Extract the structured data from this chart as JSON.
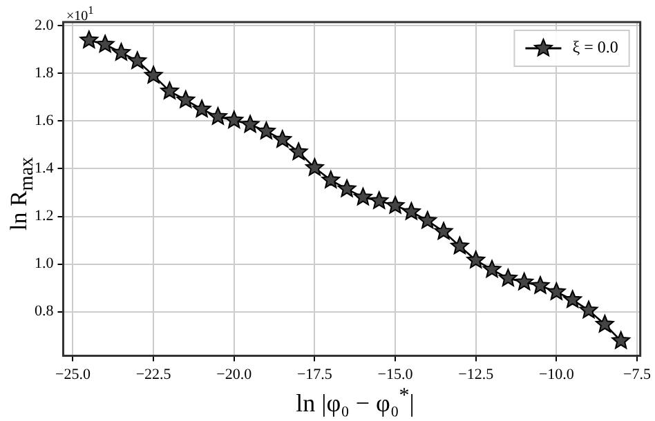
{
  "chart_data": {
    "type": "line",
    "xlabel": "ln |φ₀ − φ₀$^{*}$|",
    "ylabel": "ln R$_{max}$",
    "annotations": [
      "×10$^{1}$"
    ],
    "x": [
      -24.5,
      -24,
      -23.5,
      -23,
      -22.5,
      -22,
      -21.5,
      -21,
      -20.5,
      -20,
      -19.5,
      -19,
      -18.5,
      -18,
      -17.5,
      -17,
      -16.5,
      -16,
      -15.5,
      -15,
      -14.5,
      -14,
      -13.5,
      -13,
      -12.5,
      -12,
      -11.5,
      -11,
      -10.5,
      -10,
      -9.5,
      -9,
      -8.5,
      -8
    ],
    "series": [
      {
        "name": "ξ = 0.0",
        "color": "#000000",
        "values": [
          1.939,
          1.921,
          1.887,
          1.852,
          1.791,
          1.725,
          1.688,
          1.649,
          1.618,
          1.603,
          1.585,
          1.557,
          1.522,
          1.47,
          1.404,
          1.352,
          1.315,
          1.28,
          1.265,
          1.245,
          1.219,
          1.182,
          1.136,
          1.075,
          1.016,
          0.977,
          0.94,
          0.924,
          0.909,
          0.883,
          0.85,
          0.806,
          0.747,
          0.678
        ]
      }
    ],
    "xlim": [
      -25.3,
      -7.4
    ],
    "ylim": [
      0.615,
      2.015
    ],
    "xticks": [
      {
        "value": -25,
        "label": "−25.0"
      },
      {
        "value": -22.5,
        "label": "−22.5"
      },
      {
        "value": -20,
        "label": "−20.0"
      },
      {
        "value": -17.5,
        "label": "−17.5"
      },
      {
        "value": -15,
        "label": "−15.0"
      },
      {
        "value": -12.5,
        "label": "−12.5"
      },
      {
        "value": -10,
        "label": "−10.0"
      },
      {
        "value": -7.5,
        "label": "−7.5"
      }
    ],
    "yticks": [
      {
        "value": 0.8,
        "label": "0.8"
      },
      {
        "value": 1,
        "label": "1.0"
      },
      {
        "value": 1.2,
        "label": "1.2"
      },
      {
        "value": 1.4,
        "label": "1.4"
      },
      {
        "value": 1.6,
        "label": "1.6"
      },
      {
        "value": 1.8,
        "label": "1.8"
      },
      {
        "value": 2,
        "label": "2.0"
      }
    ],
    "grid": true,
    "legend": "top right",
    "marker": "star",
    "line_style": "solid"
  }
}
